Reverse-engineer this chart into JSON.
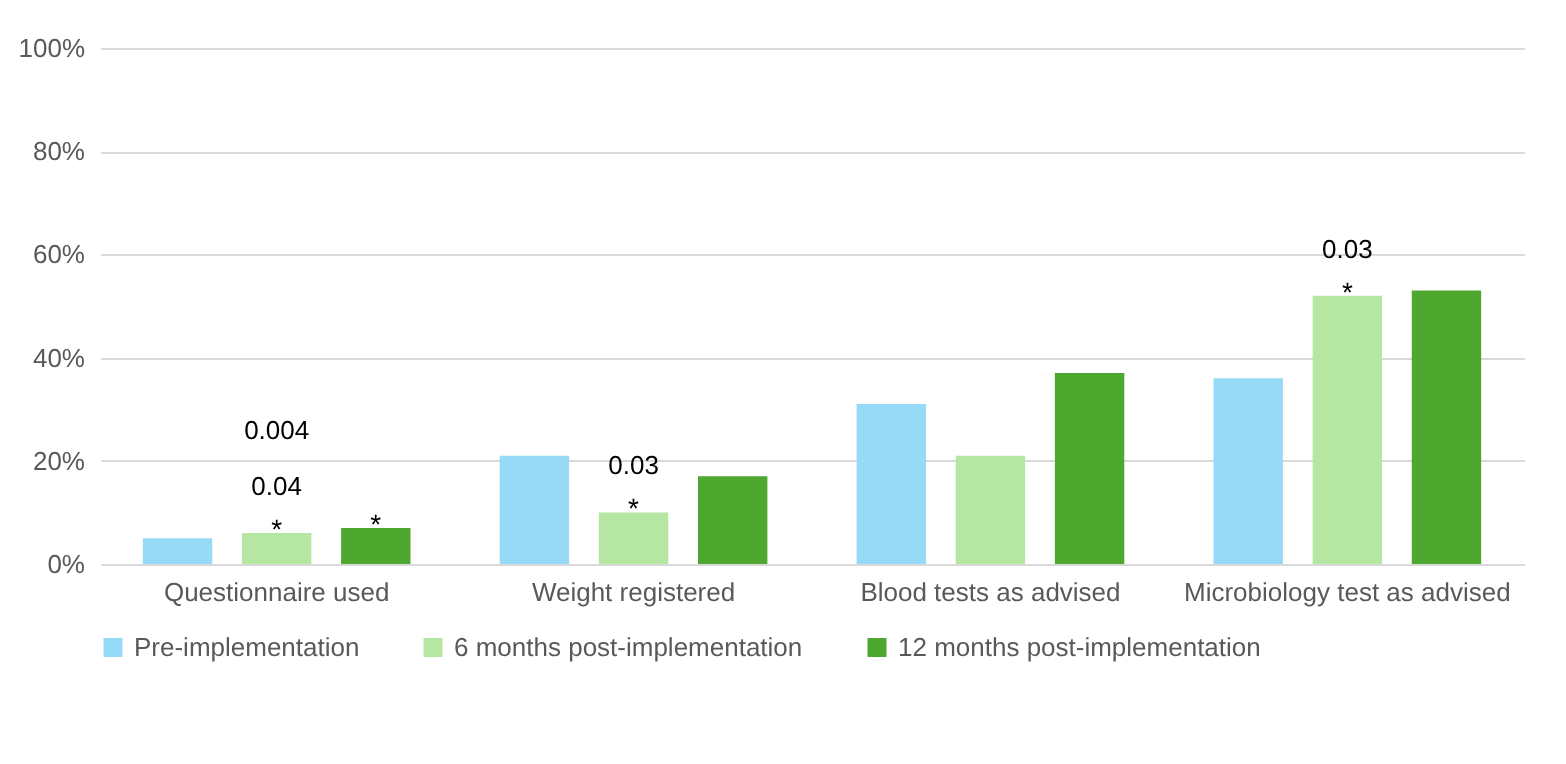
{
  "chart_data": {
    "type": "bar",
    "categories": [
      "Questionnaire used",
      "Weight registered",
      "Blood tests as advised",
      "Microbiology test as advised"
    ],
    "series": [
      {
        "name": "Pre-implementation",
        "color": "#97daf7",
        "values": [
          5,
          21,
          31,
          36
        ]
      },
      {
        "name": "6 months post-implementation",
        "color": "#b5e6a2",
        "values": [
          6,
          10,
          21,
          52
        ]
      },
      {
        "name": "12 months post-implementation",
        "color": "#4ea72e",
        "values": [
          7,
          17,
          37,
          53
        ]
      }
    ],
    "ylim": [
      0,
      100
    ],
    "yticks": [
      {
        "value": 0,
        "label": "0%"
      },
      {
        "value": 20,
        "label": "20%"
      },
      {
        "value": 40,
        "label": "40%"
      },
      {
        "value": 60,
        "label": "60%"
      },
      {
        "value": 80,
        "label": "80%"
      },
      {
        "value": 100,
        "label": "100%"
      }
    ],
    "grid": "y",
    "legend": "bottom",
    "annotations": [
      "0.04",
      "0.004",
      {
        "text": "*",
        "x": "Questionnaire used",
        "y": 6
      },
      "*",
      "0.03",
      {
        "text": "*",
        "x": "Weight registered",
        "y": 10
      },
      "0.03",
      {
        "text": "*",
        "x": "Microbiology test as advised",
        "y": 52
      }
    ]
  }
}
